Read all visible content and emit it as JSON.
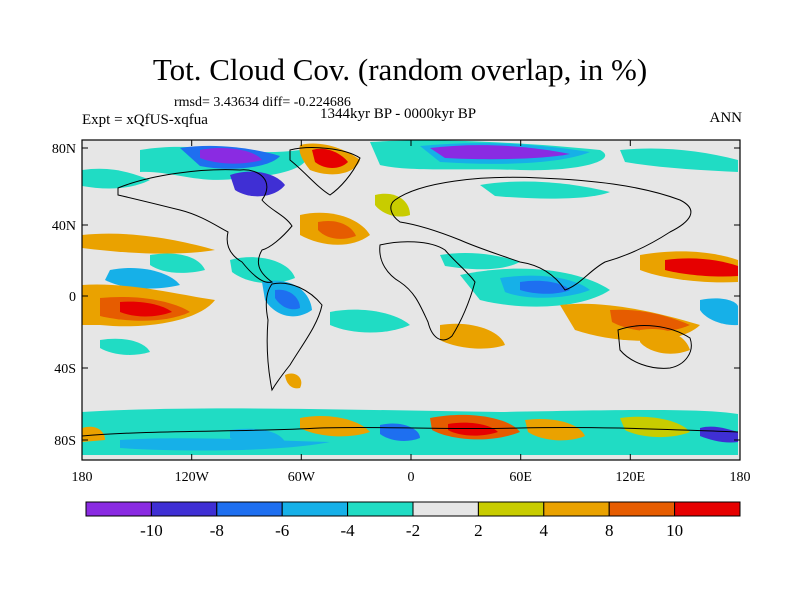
{
  "title": "Tot. Cloud Cov. (random overlap, in %)",
  "stats": "rmsd= 3.43634 diff= -0.224686",
  "experiment": "Expt = xQfUS-xqfua",
  "period": "1344kyr BP - 0000kyr BP",
  "season": "ANN",
  "lat_ticks": [
    "80N",
    "40N",
    "0",
    "40S",
    "80S"
  ],
  "lon_ticks": [
    "180",
    "120W",
    "60W",
    "0",
    "60E",
    "120E",
    "180"
  ],
  "colorbar": {
    "labels": [
      "-10",
      "-8",
      "-6",
      "-4",
      "-2",
      "2",
      "4",
      "8",
      "10"
    ],
    "colors": [
      "#8a2be2",
      "#3f2fd4",
      "#1e6ff0",
      "#16b0e8",
      "#20dcc4",
      "#e6e6e6",
      "#c8cc00",
      "#eaa200",
      "#e65c00",
      "#e60000"
    ]
  }
}
